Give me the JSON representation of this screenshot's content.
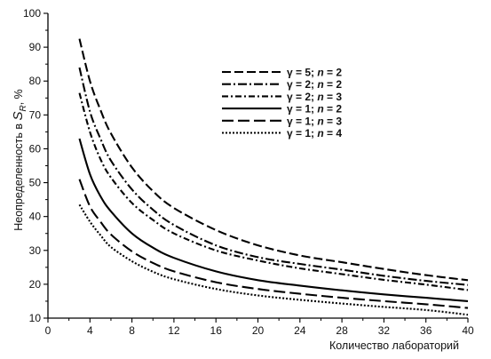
{
  "chart_data": {
    "type": "line",
    "xlabel": "Количество лабораторий",
    "ylabel": {
      "prefix": "Неопределенность в ",
      "sym": "S",
      "sub": "R",
      "suffix": ", %"
    },
    "xlim": [
      0,
      40
    ],
    "ylim": [
      10,
      100
    ],
    "xticks": [
      0,
      4,
      8,
      12,
      16,
      20,
      24,
      28,
      32,
      36,
      40
    ],
    "yticks": [
      10,
      20,
      30,
      40,
      50,
      60,
      70,
      80,
      90,
      100
    ],
    "grid": false,
    "legend_position": "top-right",
    "series": [
      {
        "name": "γ = 5; n = 2",
        "gamma": "5",
        "n": "2",
        "dash": "10,4",
        "x": [
          3,
          4,
          5,
          6,
          8,
          10,
          12,
          16,
          20,
          24,
          28,
          32,
          36,
          40
        ],
        "y": [
          92.5,
          80,
          71.5,
          64.5,
          54.5,
          47.5,
          42.5,
          36,
          31.5,
          28.5,
          26.5,
          24.5,
          22.7,
          21.2
        ]
      },
      {
        "name": "γ = 2; n = 2",
        "gamma": "2",
        "n": "2",
        "dash": "10,3,2,3",
        "x": [
          3,
          4,
          5,
          6,
          8,
          10,
          12,
          16,
          20,
          24,
          28,
          32,
          36,
          40
        ],
        "y": [
          84,
          71,
          63,
          56.5,
          48,
          42,
          37.5,
          31.5,
          28,
          26,
          24.3,
          22.5,
          21,
          19.8
        ]
      },
      {
        "name": "γ = 2; n = 3",
        "gamma": "2",
        "n": "3",
        "dash": "7,3,2,3",
        "x": [
          3,
          4,
          5,
          6,
          8,
          10,
          12,
          16,
          20,
          24,
          28,
          32,
          36,
          40
        ],
        "y": [
          76.5,
          65,
          57,
          51.5,
          44,
          39,
          35,
          30,
          27,
          24.7,
          23,
          21.3,
          19.9,
          18.3
        ]
      },
      {
        "name": "γ = 1; n = 2",
        "gamma": "1",
        "n": "2",
        "dash": "",
        "x": [
          3,
          4,
          5,
          6,
          8,
          10,
          12,
          16,
          20,
          24,
          28,
          32,
          36,
          40
        ],
        "y": [
          63,
          52.5,
          46,
          41.5,
          35,
          30.8,
          27.8,
          23.8,
          21.2,
          19.6,
          18.2,
          17,
          16,
          15
        ]
      },
      {
        "name": "γ = 1; n = 3",
        "gamma": "1",
        "n": "3",
        "dash": "13,5",
        "x": [
          3,
          4,
          5,
          6,
          8,
          10,
          12,
          16,
          20,
          24,
          28,
          32,
          36,
          40
        ],
        "y": [
          51,
          43,
          38.5,
          34.7,
          29.7,
          26.3,
          23.8,
          20.6,
          18.6,
          17.2,
          16,
          15,
          14.1,
          13
        ]
      },
      {
        "name": "γ = 1; n = 4",
        "gamma": "1",
        "n": "4",
        "dash": "2,2",
        "x": [
          3,
          4,
          5,
          6,
          8,
          10,
          12,
          16,
          20,
          24,
          28,
          32,
          36,
          40
        ],
        "y": [
          43.5,
          38.5,
          34.5,
          31,
          26.8,
          23.7,
          21.5,
          18.6,
          16.7,
          15.4,
          14.3,
          13.3,
          12.4,
          11
        ]
      }
    ]
  }
}
